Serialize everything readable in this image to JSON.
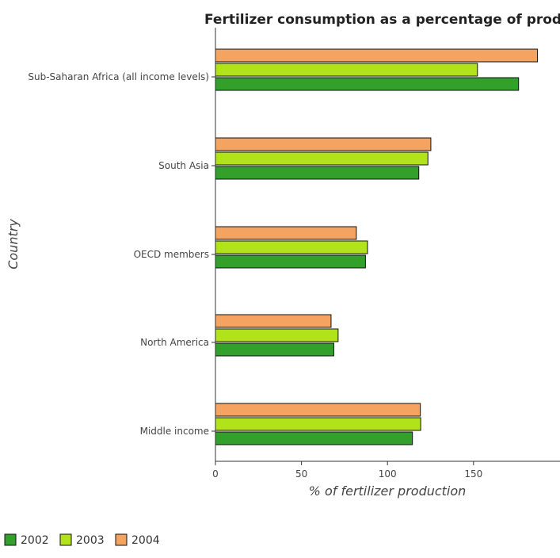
{
  "chart_data": {
    "type": "bar",
    "orientation": "horizontal",
    "title": "Fertilizer consumption as a percentage of production",
    "xlabel": "% of fertilizer production",
    "ylabel": "Country",
    "categories": [
      "Middle income",
      "North America",
      "OECD members",
      "South Asia",
      "Sub-Saharan Africa (all income levels)"
    ],
    "series": [
      {
        "name": "2002",
        "color": "#33a02c",
        "values": [
          114.5,
          68.8,
          87.2,
          118.2,
          176.2
        ]
      },
      {
        "name": "2003",
        "color": "#b2e31a",
        "values": [
          119.3,
          71.3,
          88.4,
          123.5,
          152.3
        ]
      },
      {
        "name": "2004",
        "color": "#f4a460",
        "values": [
          119.1,
          67.2,
          81.9,
          125.2,
          187.2
        ]
      }
    ],
    "xlim": [
      0,
      200
    ],
    "xticks": [
      0,
      50,
      100,
      150
    ],
    "grid": false,
    "legend_position": "bottom-left"
  }
}
